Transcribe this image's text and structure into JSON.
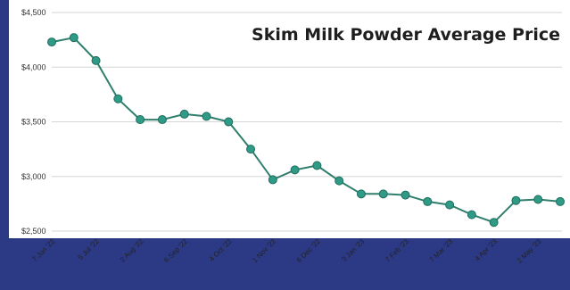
{
  "chart_data": {
    "type": "line",
    "title": "Skim Milk Powder Average Price",
    "xlabel": "",
    "ylabel": "",
    "ylim": [
      2500,
      4500
    ],
    "yticks": [
      {
        "value": 2500,
        "label": "$2,500"
      },
      {
        "value": 3000,
        "label": "$3,000"
      },
      {
        "value": 3500,
        "label": "$3,500"
      },
      {
        "value": 4000,
        "label": "$4,000"
      },
      {
        "value": 4500,
        "label": "$4,500"
      }
    ],
    "grid": true,
    "legend": "none",
    "colors": {
      "line": "#2f7f6c",
      "marker": "#2f9a86",
      "grid": "#d6d6d6"
    },
    "x_tick_labels": [
      {
        "index": 0,
        "label": "7 Jun '22"
      },
      {
        "index": 2,
        "label": "5 Jul '22"
      },
      {
        "index": 4,
        "label": "2 Aug '22"
      },
      {
        "index": 6,
        "label": "6 Sep '22"
      },
      {
        "index": 8,
        "label": "4 Oct '22"
      },
      {
        "index": 10,
        "label": "1 Nov '22"
      },
      {
        "index": 12,
        "label": "6 Dec '22"
      },
      {
        "index": 14,
        "label": "3 Jan '23"
      },
      {
        "index": 16,
        "label": "7 Feb '23"
      },
      {
        "index": 18,
        "label": "7 Mar '23"
      },
      {
        "index": 20,
        "label": "4 Apr '23"
      },
      {
        "index": 22,
        "label": "2 May '23"
      }
    ],
    "values": [
      4230,
      4270,
      4060,
      3710,
      3520,
      3520,
      3570,
      3550,
      3500,
      3250,
      2970,
      3060,
      3100,
      2960,
      2840,
      2840,
      2830,
      2770,
      2740,
      2650,
      2580,
      2780,
      2790,
      2770
    ]
  }
}
